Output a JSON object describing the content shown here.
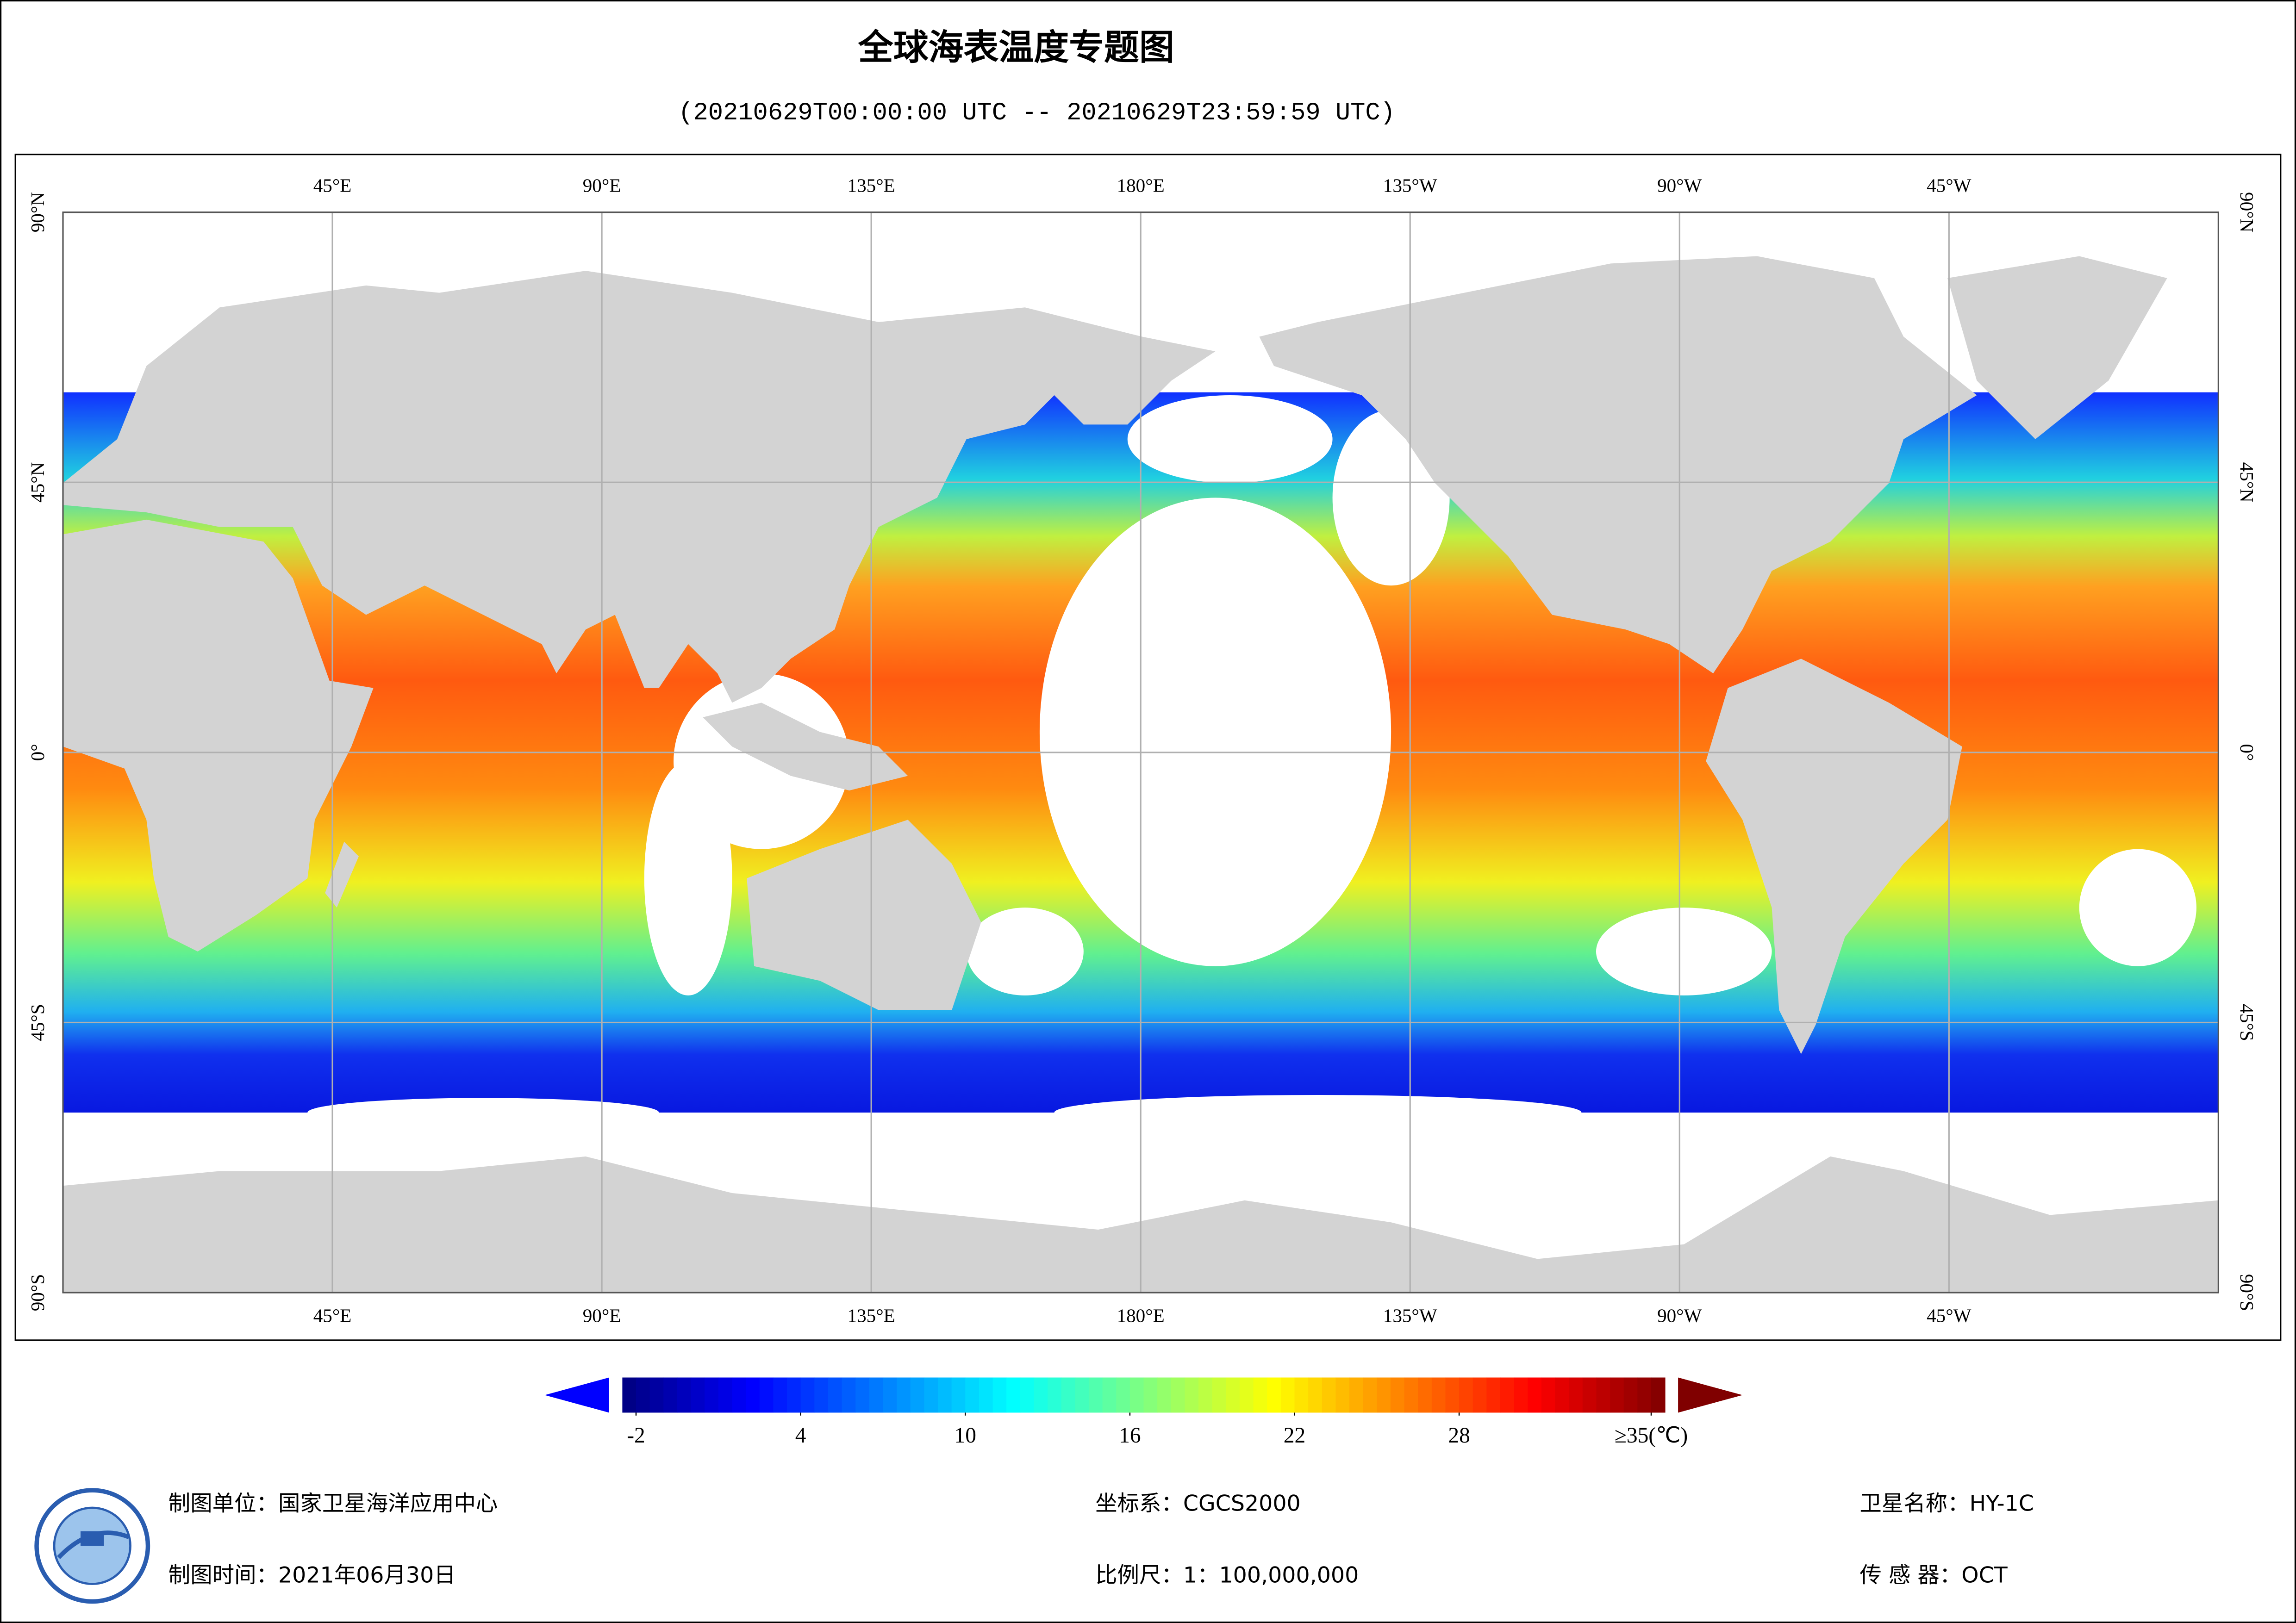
{
  "title": "全球海表温度专题图",
  "subtitle": "(20210629T00:00:00 UTC -- 20210629T23:59:59 UTC)",
  "map": {
    "lon_range": [
      0,
      360
    ],
    "lat_range": [
      -90,
      90
    ],
    "lon_ticks": [
      {
        "value": 45,
        "label": "45°E"
      },
      {
        "value": 90,
        "label": "90°E"
      },
      {
        "value": 135,
        "label": "135°E"
      },
      {
        "value": 180,
        "label": "180°E"
      },
      {
        "value": 225,
        "label": "135°W"
      },
      {
        "value": 270,
        "label": "90°W"
      },
      {
        "value": 315,
        "label": "45°W"
      }
    ],
    "lat_ticks": [
      {
        "value": 90,
        "label": "90°N"
      },
      {
        "value": 45,
        "label": "45°N"
      },
      {
        "value": 0,
        "label": "0°"
      },
      {
        "value": -45,
        "label": "45°S"
      },
      {
        "value": -90,
        "label": "90°S"
      }
    ]
  },
  "colorbar": {
    "range": [
      -2.5,
      35.5
    ],
    "ticks": [
      -2,
      4,
      10,
      16,
      22,
      28,
      {
        "value": 35,
        "label": "≥35(℃)"
      }
    ]
  },
  "footer": {
    "producer": "制图单位：国家卫星海洋应用中心",
    "date": "制图时间：2021年06月30日",
    "crs": "坐标系：CGCS2000",
    "scale": "比例尺：1：100,000,000",
    "satellite": "卫星名称：HY-1C",
    "sensor": "传 感 器：OCT"
  }
}
